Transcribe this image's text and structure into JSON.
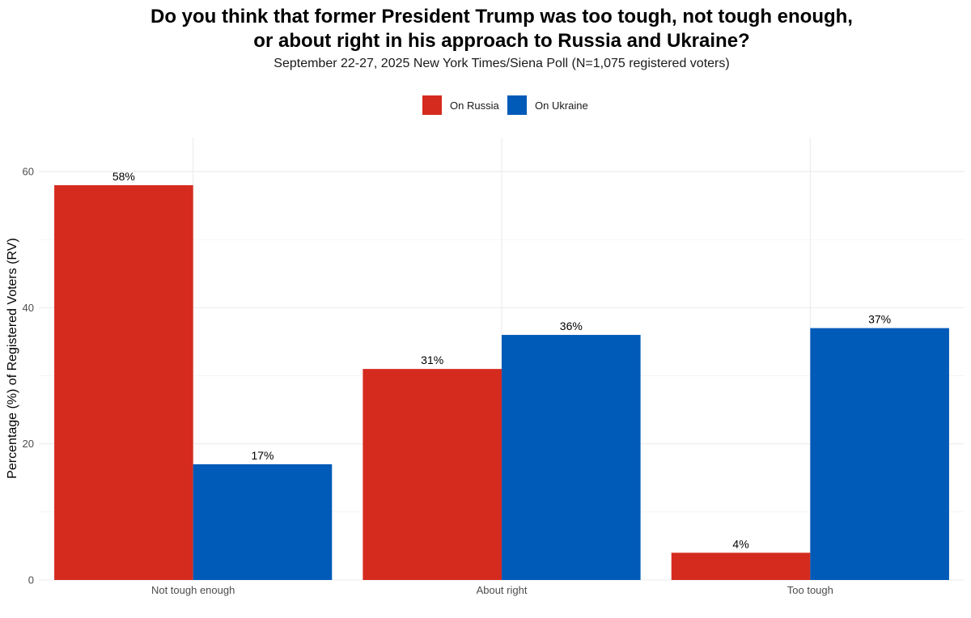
{
  "chart_data": {
    "type": "bar",
    "title_lines": [
      "Do you think that former President Trump was too tough, not tough enough,",
      "or about right in his approach to Russia and Ukraine?"
    ],
    "subtitle": "September 22-27, 2025 New York Times/Siena Poll (N=1,075 registered voters)",
    "xlabel": "",
    "ylabel": "Percentage (%) of Registered Voters (RV)",
    "categories": [
      "Not tough enough",
      "About right",
      "Too tough"
    ],
    "series": [
      {
        "name": "On Russia",
        "color": "#d52b1e",
        "values": [
          58,
          31,
          4
        ],
        "labels": [
          "58%",
          "31%",
          "4%"
        ]
      },
      {
        "name": "On Ukraine",
        "color": "#005ab8",
        "values": [
          17,
          36,
          37
        ],
        "labels": [
          "17%",
          "36%",
          "37%"
        ]
      }
    ],
    "ylim": [
      0,
      65
    ],
    "yticks": [
      0,
      20,
      40,
      60
    ],
    "yticks_labels": [
      "0",
      "20",
      "40",
      "60"
    ],
    "grid": true,
    "legend_position": "top"
  }
}
